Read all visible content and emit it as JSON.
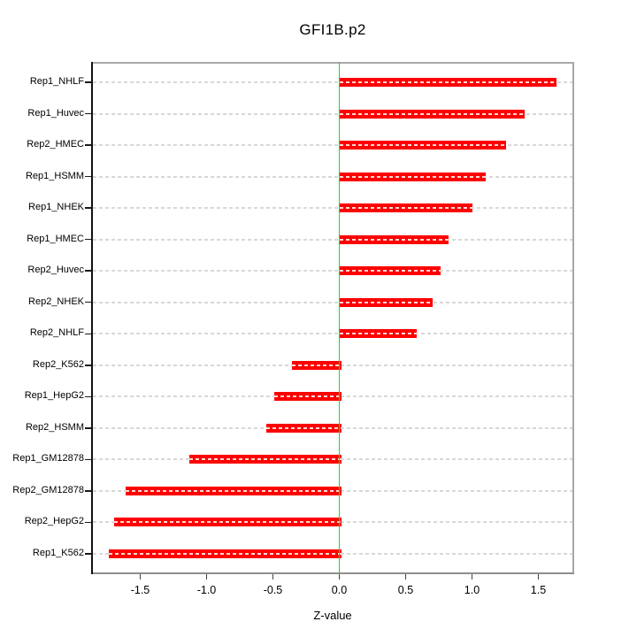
{
  "chart_data": {
    "type": "bar",
    "orientation": "horizontal",
    "title": "GFI1B.p2",
    "xlabel": "Z-value",
    "categories": [
      "Rep1_NHLF",
      "Rep1_Huvec",
      "Rep2_HMEC",
      "Rep1_HSMM",
      "Rep1_NHEK",
      "Rep1_HMEC",
      "Rep2_Huvec",
      "Rep2_NHEK",
      "Rep2_NHLF",
      "Rep2_K562",
      "Rep1_HepG2",
      "Rep2_HSMM",
      "Rep1_GM12878",
      "Rep2_GM12878",
      "Rep2_HepG2",
      "Rep1_K562"
    ],
    "values": [
      1.62,
      1.38,
      1.24,
      1.09,
      0.99,
      0.81,
      0.75,
      0.69,
      0.57,
      -0.36,
      -0.49,
      -0.55,
      -1.13,
      -1.61,
      -1.7,
      -1.74
    ],
    "xticks": [
      -1.5,
      -1.0,
      -0.5,
      0.0,
      0.5,
      1.0,
      1.5
    ],
    "xtick_labels": [
      "-1.5",
      "-1.0",
      "-0.5",
      "0.0",
      "0.5",
      "1.0",
      "1.5"
    ],
    "xlim": [
      -1.87,
      1.77
    ],
    "grid": "dashed horizontal line per category, full plot width",
    "legend": "none",
    "colors": {
      "bar": "#fe0000",
      "bar_dash_overlay": "rgba(255,255,255,0.85)",
      "zero_line": "#00ee00",
      "gridline": "#d8d8d8",
      "box_top_right": "#a8a8a8",
      "box_bottom": "#8e8e8e",
      "axis_left": "#111111",
      "text": "#000000",
      "background": "#ffffff"
    }
  }
}
